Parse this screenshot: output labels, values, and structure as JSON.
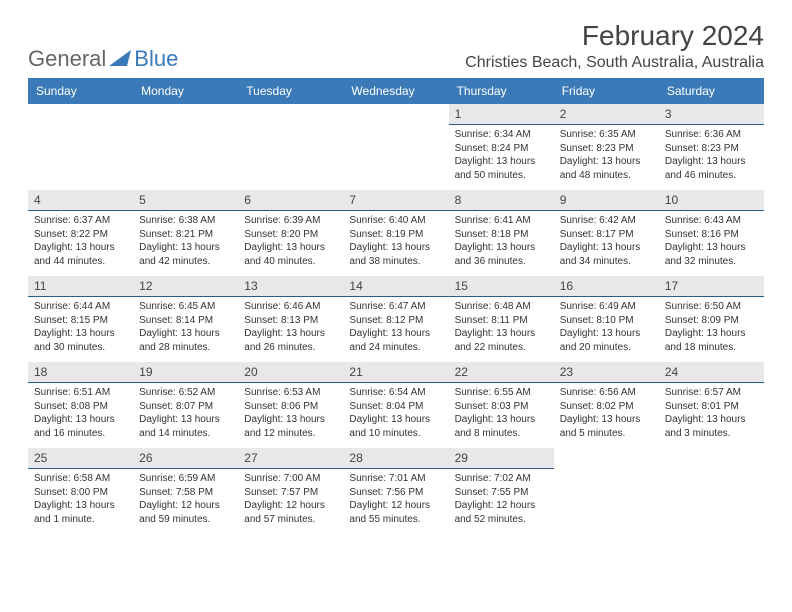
{
  "logo": {
    "general": "General",
    "blue": "Blue"
  },
  "title": "February 2024",
  "location": "Christies Beach, South Australia, Australia",
  "colors": {
    "header_bg": "#3b7ab8",
    "header_text": "#ffffff",
    "daynum_bg": "#e8e8e8",
    "daynum_border": "#2d5a8c",
    "body_text": "#333333",
    "page_bg": "#ffffff"
  },
  "weekdays": [
    "Sunday",
    "Monday",
    "Tuesday",
    "Wednesday",
    "Thursday",
    "Friday",
    "Saturday"
  ],
  "grid": [
    [
      null,
      null,
      null,
      null,
      {
        "d": "1",
        "sr": "6:34 AM",
        "ss": "8:24 PM",
        "dl": "13 hours and 50 minutes."
      },
      {
        "d": "2",
        "sr": "6:35 AM",
        "ss": "8:23 PM",
        "dl": "13 hours and 48 minutes."
      },
      {
        "d": "3",
        "sr": "6:36 AM",
        "ss": "8:23 PM",
        "dl": "13 hours and 46 minutes."
      }
    ],
    [
      {
        "d": "4",
        "sr": "6:37 AM",
        "ss": "8:22 PM",
        "dl": "13 hours and 44 minutes."
      },
      {
        "d": "5",
        "sr": "6:38 AM",
        "ss": "8:21 PM",
        "dl": "13 hours and 42 minutes."
      },
      {
        "d": "6",
        "sr": "6:39 AM",
        "ss": "8:20 PM",
        "dl": "13 hours and 40 minutes."
      },
      {
        "d": "7",
        "sr": "6:40 AM",
        "ss": "8:19 PM",
        "dl": "13 hours and 38 minutes."
      },
      {
        "d": "8",
        "sr": "6:41 AM",
        "ss": "8:18 PM",
        "dl": "13 hours and 36 minutes."
      },
      {
        "d": "9",
        "sr": "6:42 AM",
        "ss": "8:17 PM",
        "dl": "13 hours and 34 minutes."
      },
      {
        "d": "10",
        "sr": "6:43 AM",
        "ss": "8:16 PM",
        "dl": "13 hours and 32 minutes."
      }
    ],
    [
      {
        "d": "11",
        "sr": "6:44 AM",
        "ss": "8:15 PM",
        "dl": "13 hours and 30 minutes."
      },
      {
        "d": "12",
        "sr": "6:45 AM",
        "ss": "8:14 PM",
        "dl": "13 hours and 28 minutes."
      },
      {
        "d": "13",
        "sr": "6:46 AM",
        "ss": "8:13 PM",
        "dl": "13 hours and 26 minutes."
      },
      {
        "d": "14",
        "sr": "6:47 AM",
        "ss": "8:12 PM",
        "dl": "13 hours and 24 minutes."
      },
      {
        "d": "15",
        "sr": "6:48 AM",
        "ss": "8:11 PM",
        "dl": "13 hours and 22 minutes."
      },
      {
        "d": "16",
        "sr": "6:49 AM",
        "ss": "8:10 PM",
        "dl": "13 hours and 20 minutes."
      },
      {
        "d": "17",
        "sr": "6:50 AM",
        "ss": "8:09 PM",
        "dl": "13 hours and 18 minutes."
      }
    ],
    [
      {
        "d": "18",
        "sr": "6:51 AM",
        "ss": "8:08 PM",
        "dl": "13 hours and 16 minutes."
      },
      {
        "d": "19",
        "sr": "6:52 AM",
        "ss": "8:07 PM",
        "dl": "13 hours and 14 minutes."
      },
      {
        "d": "20",
        "sr": "6:53 AM",
        "ss": "8:06 PM",
        "dl": "13 hours and 12 minutes."
      },
      {
        "d": "21",
        "sr": "6:54 AM",
        "ss": "8:04 PM",
        "dl": "13 hours and 10 minutes."
      },
      {
        "d": "22",
        "sr": "6:55 AM",
        "ss": "8:03 PM",
        "dl": "13 hours and 8 minutes."
      },
      {
        "d": "23",
        "sr": "6:56 AM",
        "ss": "8:02 PM",
        "dl": "13 hours and 5 minutes."
      },
      {
        "d": "24",
        "sr": "6:57 AM",
        "ss": "8:01 PM",
        "dl": "13 hours and 3 minutes."
      }
    ],
    [
      {
        "d": "25",
        "sr": "6:58 AM",
        "ss": "8:00 PM",
        "dl": "13 hours and 1 minute."
      },
      {
        "d": "26",
        "sr": "6:59 AM",
        "ss": "7:58 PM",
        "dl": "12 hours and 59 minutes."
      },
      {
        "d": "27",
        "sr": "7:00 AM",
        "ss": "7:57 PM",
        "dl": "12 hours and 57 minutes."
      },
      {
        "d": "28",
        "sr": "7:01 AM",
        "ss": "7:56 PM",
        "dl": "12 hours and 55 minutes."
      },
      {
        "d": "29",
        "sr": "7:02 AM",
        "ss": "7:55 PM",
        "dl": "12 hours and 52 minutes."
      },
      null,
      null
    ]
  ],
  "labels": {
    "sunrise": "Sunrise: ",
    "sunset": "Sunset: ",
    "daylight": "Daylight: "
  }
}
